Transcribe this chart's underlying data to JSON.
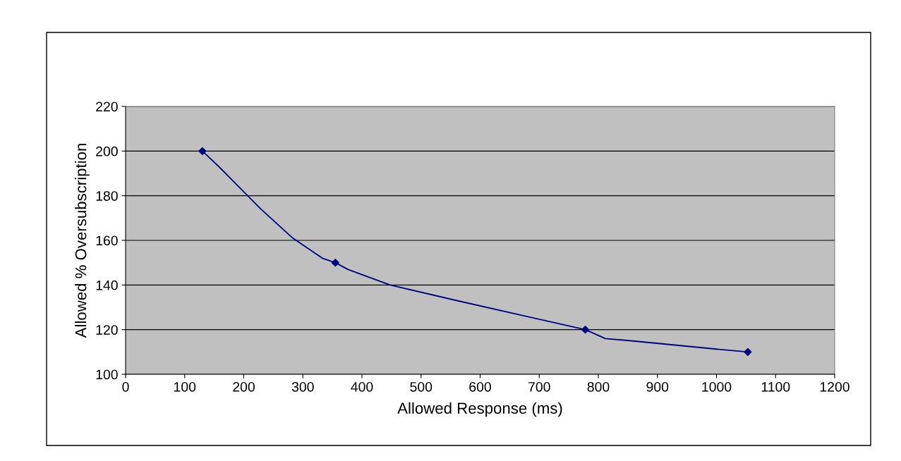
{
  "chart_data": {
    "type": "line",
    "xlabel": "Allowed Response (ms)",
    "ylabel": "Allowed % Oversubscription",
    "x": [
      130,
      355,
      778,
      1053
    ],
    "series": [
      {
        "color": "#000080",
        "marker": "none",
        "x": [
          130,
          158,
          229,
          283,
          333,
          355,
          376,
          448,
          561,
          778,
          812,
          856,
          1011,
          1053
        ],
        "values": [
          200,
          193,
          174,
          161,
          152,
          150,
          147,
          140,
          133,
          120,
          116,
          115,
          111,
          110
        ]
      },
      {
        "type": "scatter",
        "color": "#000080",
        "values": [
          200,
          150,
          120,
          110
        ]
      }
    ],
    "xlim": [
      0,
      1200
    ],
    "xticks": [
      0,
      100,
      200,
      300,
      400,
      500,
      600,
      700,
      800,
      900,
      1000,
      1100,
      1200
    ],
    "ylim": [
      100,
      220
    ],
    "yticks": [
      100,
      120,
      140,
      160,
      180,
      200,
      220
    ],
    "grid": "y",
    "marker": "diamond",
    "line_style": "solid",
    "legend": false
  }
}
